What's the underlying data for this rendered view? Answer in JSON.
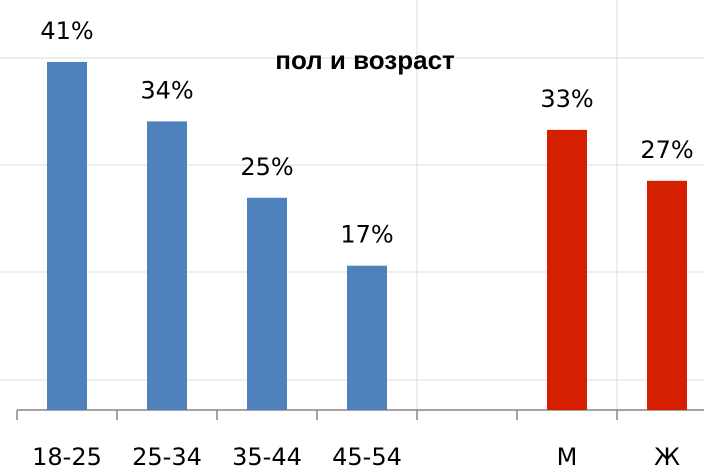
{
  "chart_data": {
    "type": "bar",
    "title": "пол и возраст",
    "categories": [
      "18-25",
      "25-34",
      "35-44",
      "45-54",
      null,
      "М",
      "Ж"
    ],
    "values": [
      41,
      34,
      25,
      17,
      null,
      33,
      27
    ],
    "value_labels": [
      "41%",
      "34%",
      "25%",
      "17%",
      null,
      "33%",
      "27%"
    ],
    "colors": [
      "#4f81bd",
      "#4f81bd",
      "#4f81bd",
      "#4f81bd",
      null,
      "#d42000",
      "#d42000"
    ],
    "ylim": [
      0,
      45
    ]
  }
}
